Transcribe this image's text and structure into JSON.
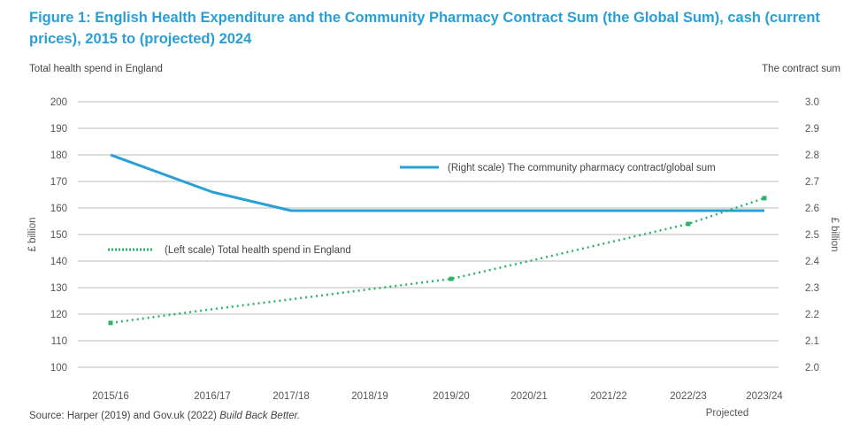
{
  "title": "Figure 1: English Health Expenditure and the Community Pharmacy Contract Sum (the Global Sum), cash (current prices), 2015 to (projected) 2024",
  "left_caption": "Total health spend in England",
  "right_caption": "The contract sum",
  "source_prefix": "Source: Harper (2019) and Gov.uk (2022) ",
  "source_italic": "Build Back Better.",
  "chart_data": {
    "type": "line",
    "title": "Figure 1: English Health Expenditure and the Community Pharmacy Contract Sum (the Global Sum), cash (current prices), 2015 to (projected) 2024",
    "categories": [
      "2015/16",
      "2016/17",
      "2017/18",
      "2018/19",
      "2019/20",
      "2020/21",
      "2021/22",
      "2022/23",
      "2023/24"
    ],
    "projected_label": "Projected",
    "y_left": {
      "label": "£ billion",
      "ticks": [
        100,
        110,
        120,
        130,
        140,
        150,
        160,
        170,
        180,
        190,
        200
      ],
      "ylim": [
        100,
        200
      ]
    },
    "y_right": {
      "label": "£ billion",
      "ticks": [
        "2.0",
        "2.1",
        "2.2",
        "2.3",
        "2.4",
        "2.5",
        "2.6",
        "2.7",
        "2.8",
        "2.9",
        "3.0"
      ],
      "ylim": [
        2.0,
        3.0
      ]
    },
    "grid": true,
    "series": [
      {
        "name": "(Right scale) The community pharmacy contract/global sum",
        "axis": "right",
        "style": "solid",
        "color": "#2a9fd6",
        "values": [
          2.8,
          2.66,
          2.59,
          2.59,
          2.59,
          2.59,
          2.59,
          2.59,
          2.59
        ]
      },
      {
        "name": "(Left scale) Total health spend in England",
        "axis": "left",
        "style": "dotted",
        "color": "#2bb36a",
        "values": [
          116.7,
          121.9,
          125.6,
          129.4,
          133.3,
          140,
          147,
          154,
          163.7
        ],
        "markers_at": [
          0,
          4,
          7,
          8
        ]
      }
    ],
    "legend": [
      "(Right scale) The community pharmacy contract/global sum",
      "(Left scale) Total health spend in England"
    ]
  }
}
